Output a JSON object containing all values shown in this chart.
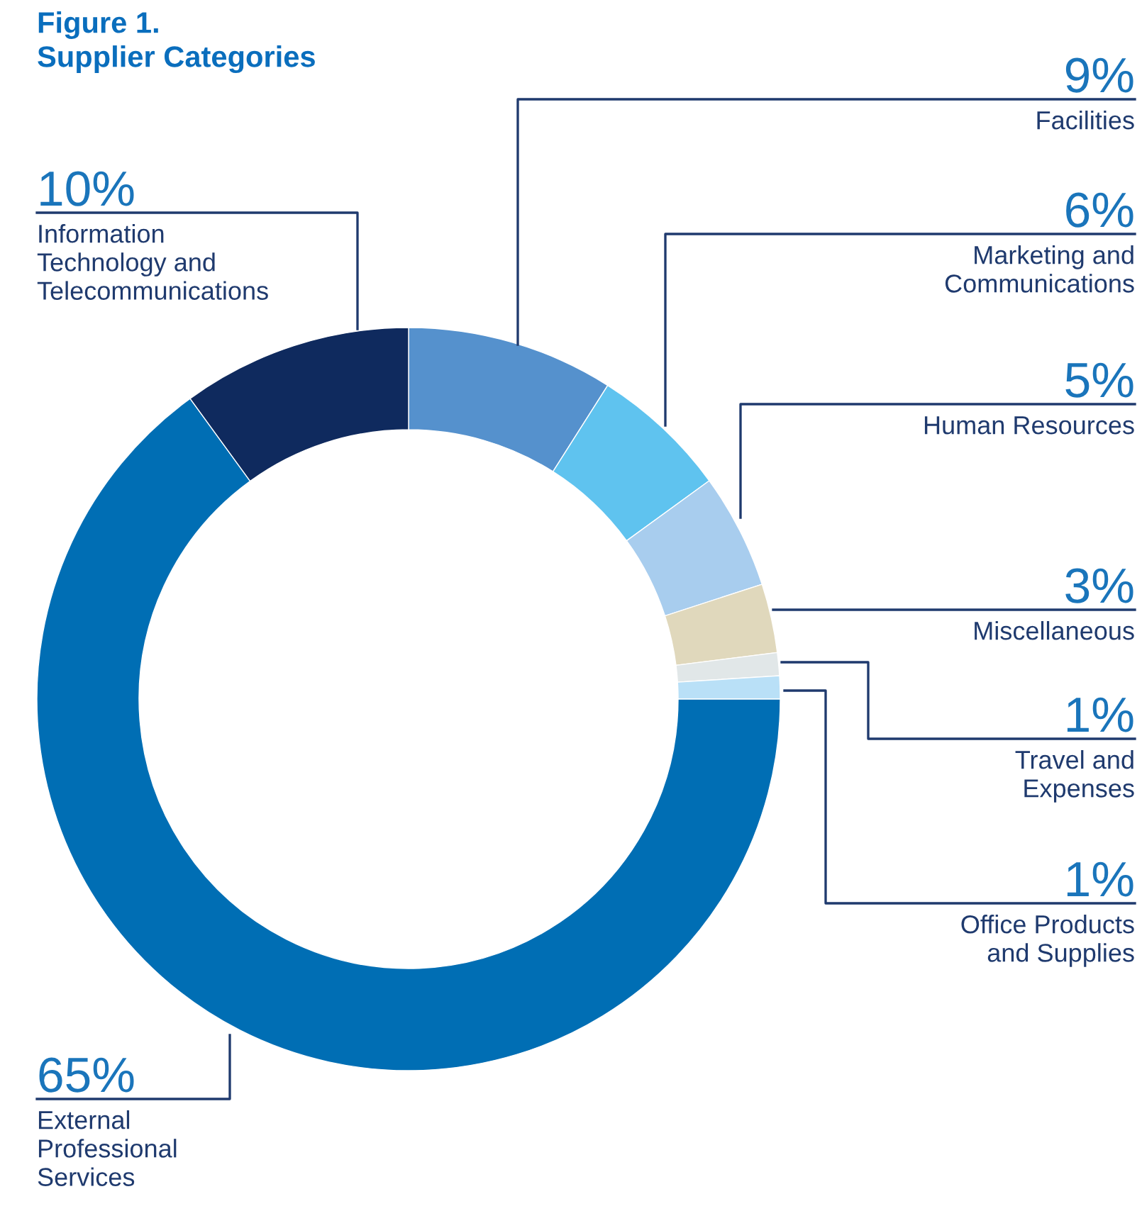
{
  "chart_data": {
    "type": "donut",
    "title": "Figure 1.\nSupplier Categories",
    "categories": [
      "Facilities",
      "Marketing and\nCommunications",
      "Human Resources",
      "Miscellaneous",
      "Travel and\nExpenses",
      "Office Products\nand Supplies",
      "External\nProfessional\nServices",
      "Information\nTechnology and\nTelecommunications"
    ],
    "values": [
      9,
      6,
      5,
      3,
      1,
      1,
      65,
      10
    ],
    "colors": [
      "#5591cd",
      "#5fc3ef",
      "#a8cdee",
      "#e0d8bc",
      "#e1e7e8",
      "#b9e0f7",
      "#006eb4",
      "#0f2a5e"
    ],
    "value_labels": [
      "9%",
      "6%",
      "5%",
      "3%",
      "1%",
      "1%",
      "65%",
      "10%"
    ]
  }
}
